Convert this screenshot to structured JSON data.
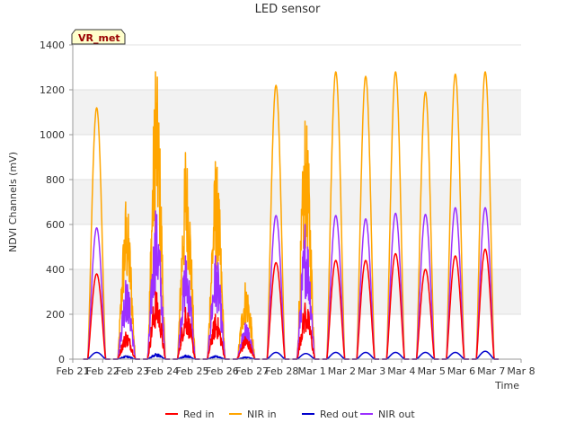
{
  "chart_data": {
    "type": "line",
    "title": "LED sensor",
    "xlabel": "Time",
    "ylabel": "NDVI Channels (mV)",
    "ylim": [
      0,
      1400
    ],
    "yticks": [
      0,
      200,
      400,
      600,
      800,
      1000,
      1200,
      1400
    ],
    "xlim": [
      0,
      15
    ],
    "xticks": [
      {
        "x": 0,
        "label": "Feb 21"
      },
      {
        "x": 1,
        "label": "Feb 22"
      },
      {
        "x": 2,
        "label": "Feb 23"
      },
      {
        "x": 3,
        "label": "Feb 24"
      },
      {
        "x": 4,
        "label": "Feb 25"
      },
      {
        "x": 5,
        "label": "Feb 26"
      },
      {
        "x": 6,
        "label": "Feb 27"
      },
      {
        "x": 7,
        "label": "Feb 28"
      },
      {
        "x": 8,
        "label": "Mar 1"
      },
      {
        "x": 9,
        "label": "Mar 2"
      },
      {
        "x": 10,
        "label": "Mar 3"
      },
      {
        "x": 11,
        "label": "Mar 4"
      },
      {
        "x": 12,
        "label": "Mar 5"
      },
      {
        "x": 13,
        "label": "Mar 6"
      },
      {
        "x": 14,
        "label": "Mar 7"
      },
      {
        "x": 15,
        "label": "Mar 8"
      }
    ],
    "grid": "horizontal bands",
    "badge": "VR_met",
    "legend_position": "bottom",
    "series": [
      {
        "name": "Red in",
        "color": "#ff0000",
        "peaks": [
          380,
          120,
          300,
          230,
          200,
          100,
          430,
          250,
          440,
          440,
          470,
          400,
          460,
          490
        ]
      },
      {
        "name": "NIR in",
        "color": "#ffa500",
        "peaks": [
          1120,
          700,
          1280,
          920,
          880,
          340,
          1220,
          1060,
          1280,
          1260,
          1280,
          1190,
          1270,
          1280
        ]
      },
      {
        "name": "Red out",
        "color": "#0000cc",
        "peaks": [
          30,
          15,
          25,
          18,
          15,
          10,
          30,
          25,
          30,
          30,
          30,
          30,
          30,
          35
        ]
      },
      {
        "name": "NIR out",
        "color": "#9b30ff",
        "peaks": [
          585,
          350,
          660,
          460,
          460,
          160,
          640,
          600,
          640,
          625,
          650,
          645,
          675,
          675
        ]
      }
    ]
  }
}
